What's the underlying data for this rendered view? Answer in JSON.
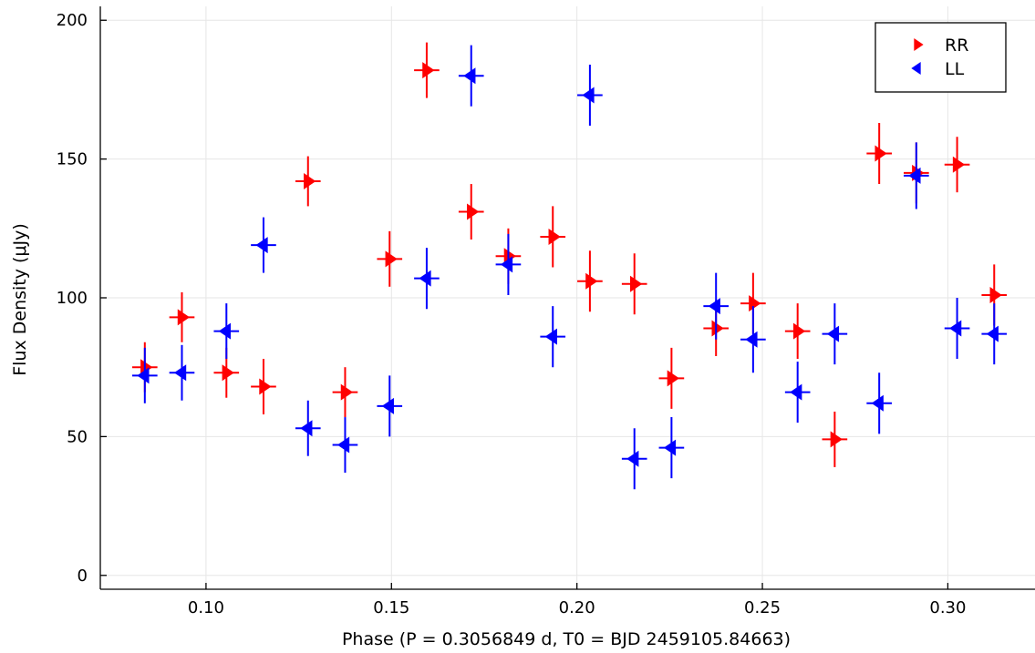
{
  "chart_data": {
    "type": "scatter",
    "title": "",
    "xlabel": "Phase (P = 0.3056849 d, T0 = BJD 2459105.84663)",
    "ylabel": "Flux Density (μJy)",
    "xlim": [
      0.0715,
      0.3235
    ],
    "ylim": [
      -5,
      205
    ],
    "xticks": [
      0.1,
      0.15,
      0.2,
      0.25,
      0.3
    ],
    "xtick_labels": [
      "0.10",
      "0.15",
      "0.20",
      "0.25",
      "0.30"
    ],
    "yticks": [
      0,
      50,
      100,
      150,
      200
    ],
    "ytick_labels": [
      "0",
      "50",
      "100",
      "150",
      "200"
    ],
    "grid": true,
    "legend_position": "top-right",
    "x_error": 0.0034,
    "series": [
      {
        "name": "RR",
        "color": "#ff0000",
        "marker": "triangle-right",
        "x": [
          0.0835,
          0.0935,
          0.1055,
          0.1155,
          0.1275,
          0.1375,
          0.1495,
          0.1595,
          0.1715,
          0.1815,
          0.1935,
          0.2035,
          0.2155,
          0.2255,
          0.2375,
          0.2475,
          0.2595,
          0.2695,
          0.2815,
          0.2915,
          0.3025,
          0.3125
        ],
        "y": [
          75,
          93,
          73,
          68,
          142,
          66,
          114,
          182,
          131,
          115,
          122,
          106,
          105,
          71,
          89,
          98,
          88,
          49,
          152,
          145,
          148,
          101
        ],
        "yerr": [
          9,
          9,
          9,
          10,
          9,
          9,
          10,
          10,
          10,
          10,
          11,
          11,
          11,
          11,
          10,
          11,
          10,
          10,
          11,
          11,
          10,
          11
        ]
      },
      {
        "name": "LL",
        "color": "#0000ff",
        "marker": "triangle-left",
        "x": [
          0.0835,
          0.0935,
          0.1055,
          0.1155,
          0.1275,
          0.1375,
          0.1495,
          0.1595,
          0.1715,
          0.1815,
          0.1935,
          0.2035,
          0.2155,
          0.2255,
          0.2375,
          0.2475,
          0.2595,
          0.2695,
          0.2815,
          0.2915,
          0.3025,
          0.3125
        ],
        "y": [
          72,
          73,
          88,
          119,
          53,
          47,
          61,
          107,
          180,
          112,
          86,
          173,
          42,
          46,
          97,
          85,
          66,
          87,
          62,
          144,
          89,
          87
        ],
        "yerr": [
          10,
          10,
          10,
          10,
          10,
          10,
          11,
          11,
          11,
          11,
          11,
          11,
          11,
          11,
          12,
          12,
          11,
          11,
          11,
          12,
          11,
          11
        ]
      }
    ]
  }
}
